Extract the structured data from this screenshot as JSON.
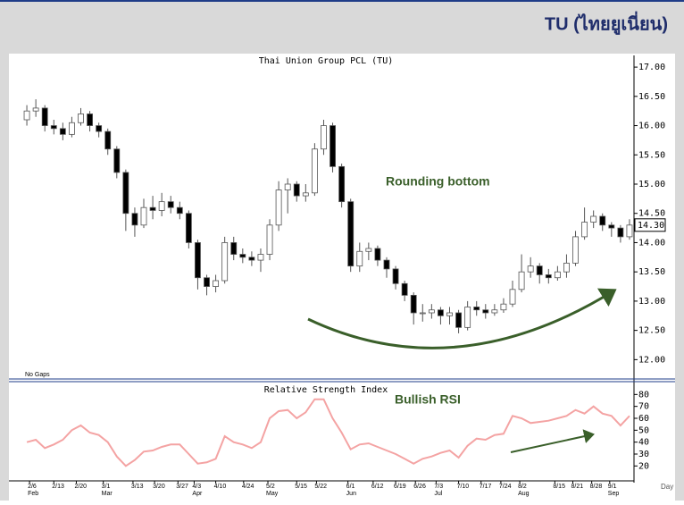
{
  "header": {
    "title": "TU (ไทยยูเนี่ยน)"
  },
  "chart_data": [
    {
      "type": "candlestick",
      "title": "Thai Union Group PCL (TU)",
      "note": "No Gaps",
      "annotations": [
        "Rounding bottom"
      ],
      "up_color": "#ffffff",
      "down_color": "#000000",
      "edge_color": "#555555",
      "open": [
        16.1,
        16.25,
        16.3,
        16.0,
        15.95,
        15.85,
        16.05,
        16.2,
        16.0,
        15.9,
        15.6,
        15.2,
        14.5,
        14.3,
        14.6,
        14.55,
        14.7,
        14.6,
        14.5,
        14.0,
        13.4,
        13.25,
        13.35,
        14.0,
        13.8,
        13.75,
        13.7,
        13.8,
        14.3,
        14.9,
        15.0,
        14.8,
        14.85,
        15.6,
        16.0,
        15.3,
        14.7,
        13.6,
        13.85,
        13.9,
        13.7,
        13.55,
        13.3,
        13.1,
        12.8,
        12.8,
        12.85,
        12.75,
        12.8,
        12.55,
        12.9,
        12.85,
        12.8,
        12.85,
        12.95,
        13.2,
        13.5,
        13.6,
        13.45,
        13.4,
        13.5,
        13.65,
        14.1,
        14.35,
        14.45,
        14.3,
        14.25,
        14.1
      ],
      "high": [
        16.35,
        16.45,
        16.35,
        16.1,
        16.05,
        16.15,
        16.3,
        16.25,
        16.05,
        15.95,
        15.65,
        15.25,
        14.6,
        14.75,
        14.8,
        14.85,
        14.8,
        14.7,
        14.55,
        14.05,
        13.45,
        13.45,
        14.1,
        14.1,
        13.9,
        13.85,
        13.9,
        14.4,
        15.05,
        15.1,
        15.05,
        15.0,
        15.7,
        16.1,
        16.05,
        15.35,
        14.75,
        14.0,
        14.0,
        13.95,
        13.75,
        13.6,
        13.35,
        13.15,
        12.95,
        12.95,
        12.9,
        12.9,
        12.85,
        13.0,
        13.0,
        12.95,
        12.95,
        13.05,
        13.35,
        13.8,
        13.75,
        13.65,
        13.55,
        13.6,
        13.8,
        14.2,
        14.6,
        14.55,
        14.5,
        14.35,
        14.3,
        14.4
      ],
      "low": [
        16.0,
        16.15,
        15.9,
        15.85,
        15.75,
        15.8,
        16.0,
        15.9,
        15.8,
        15.5,
        15.1,
        14.2,
        14.1,
        14.25,
        14.4,
        14.45,
        14.5,
        14.4,
        13.9,
        13.2,
        13.1,
        13.15,
        13.3,
        13.7,
        13.65,
        13.6,
        13.5,
        13.7,
        14.2,
        14.5,
        14.7,
        14.7,
        14.8,
        15.5,
        15.2,
        14.6,
        13.5,
        13.5,
        13.7,
        13.6,
        13.4,
        13.2,
        13.0,
        12.6,
        12.65,
        12.7,
        12.6,
        12.6,
        12.45,
        12.5,
        12.75,
        12.7,
        12.75,
        12.8,
        12.9,
        13.15,
        13.4,
        13.3,
        13.3,
        13.35,
        13.4,
        13.6,
        14.05,
        14.25,
        14.2,
        14.1,
        14.0,
        14.05
      ],
      "close": [
        16.25,
        16.3,
        16.0,
        15.95,
        15.85,
        16.05,
        16.2,
        16.0,
        15.9,
        15.6,
        15.2,
        14.5,
        14.3,
        14.6,
        14.55,
        14.7,
        14.6,
        14.5,
        14.0,
        13.4,
        13.25,
        13.35,
        14.0,
        13.8,
        13.75,
        13.7,
        13.8,
        14.3,
        14.9,
        15.0,
        14.8,
        14.85,
        15.6,
        16.0,
        15.3,
        14.7,
        13.6,
        13.85,
        13.9,
        13.7,
        13.55,
        13.3,
        13.1,
        12.8,
        12.8,
        12.85,
        12.75,
        12.8,
        12.55,
        12.9,
        12.85,
        12.8,
        12.85,
        12.95,
        13.2,
        13.5,
        13.6,
        13.45,
        13.4,
        13.5,
        13.65,
        14.1,
        14.35,
        14.45,
        14.3,
        14.25,
        14.1,
        14.3
      ],
      "last_price": {
        "value": 14.3,
        "label": "14.30"
      },
      "xlim": [
        -0.8,
        67.5
      ],
      "ylim": [
        11.7,
        17.2
      ],
      "yticks": [
        {
          "value": 12,
          "label": "12.00"
        },
        {
          "value": 12.5,
          "label": "12.50"
        },
        {
          "value": 13,
          "label": "13.00"
        },
        {
          "value": 13.5,
          "label": "13.50"
        },
        {
          "value": 14,
          "label": "14.00"
        },
        {
          "value": 14.5,
          "label": "14.50"
        },
        {
          "value": 15,
          "label": "15.00"
        },
        {
          "value": 15.5,
          "label": "15.50"
        },
        {
          "value": 16,
          "label": "16.00"
        },
        {
          "value": 16.5,
          "label": "16.50"
        },
        {
          "value": 17,
          "label": "17.00"
        }
      ]
    },
    {
      "type": "line",
      "title": "Relative Strength Index",
      "xlabel": "Day",
      "annotations": [
        "Bullish RSI"
      ],
      "color": "#f4a3a3",
      "values": [
        40,
        42,
        35,
        38,
        42,
        50,
        54,
        48,
        46,
        40,
        28,
        20,
        25,
        32,
        33,
        36,
        38,
        38,
        30,
        22,
        23,
        26,
        45,
        40,
        38,
        35,
        40,
        60,
        66,
        67,
        60,
        65,
        76,
        76,
        60,
        48,
        34,
        38,
        39,
        36,
        33,
        30,
        26,
        22,
        26,
        28,
        31,
        33,
        27,
        37,
        43,
        42,
        46,
        47,
        62,
        60,
        56,
        57,
        58,
        60,
        62,
        67,
        64,
        70,
        64,
        62,
        54,
        62
      ],
      "xlim": [
        -0.8,
        67.5
      ],
      "ylim": [
        9,
        90
      ],
      "yticks": [
        20,
        30,
        40,
        50,
        60,
        70,
        80
      ],
      "xticks": [
        {
          "value": 0.3,
          "label": "2/6"
        },
        {
          "value": 3,
          "label": "2/13"
        },
        {
          "value": 5.5,
          "label": "2/20"
        },
        {
          "value": 8.5,
          "label": "3/1"
        },
        {
          "value": 11.8,
          "label": "3/13"
        },
        {
          "value": 14.2,
          "label": "3/20"
        },
        {
          "value": 16.8,
          "label": "3/27"
        },
        {
          "value": 18.6,
          "label": "4/3"
        },
        {
          "value": 21,
          "label": "4/10"
        },
        {
          "value": 24.1,
          "label": "4/24"
        },
        {
          "value": 26.8,
          "label": "5/2"
        },
        {
          "value": 30,
          "label": "5/15"
        },
        {
          "value": 32.2,
          "label": "5/22"
        },
        {
          "value": 35.7,
          "label": "6/1"
        },
        {
          "value": 38.5,
          "label": "6/12"
        },
        {
          "value": 41,
          "label": "6/19"
        },
        {
          "value": 43.2,
          "label": "6/26"
        },
        {
          "value": 45.5,
          "label": "7/3"
        },
        {
          "value": 48,
          "label": "7/10"
        },
        {
          "value": 50.5,
          "label": "7/17"
        },
        {
          "value": 52.7,
          "label": "7/24"
        },
        {
          "value": 54.8,
          "label": "8/2"
        },
        {
          "value": 58.7,
          "label": "8/15"
        },
        {
          "value": 60.7,
          "label": "8/21"
        },
        {
          "value": 62.8,
          "label": "8/28"
        },
        {
          "value": 64.8,
          "label": "9/1"
        }
      ],
      "month_ticks": [
        {
          "value": 0.3,
          "label": "Feb"
        },
        {
          "value": 8.5,
          "label": "Mar"
        },
        {
          "value": 18.6,
          "label": "Apr"
        },
        {
          "value": 26.8,
          "label": "May"
        },
        {
          "value": 35.7,
          "label": "Jun"
        },
        {
          "value": 45.5,
          "label": "Jul"
        },
        {
          "value": 54.8,
          "label": "Aug"
        },
        {
          "value": 64.8,
          "label": "Sep"
        }
      ]
    }
  ]
}
